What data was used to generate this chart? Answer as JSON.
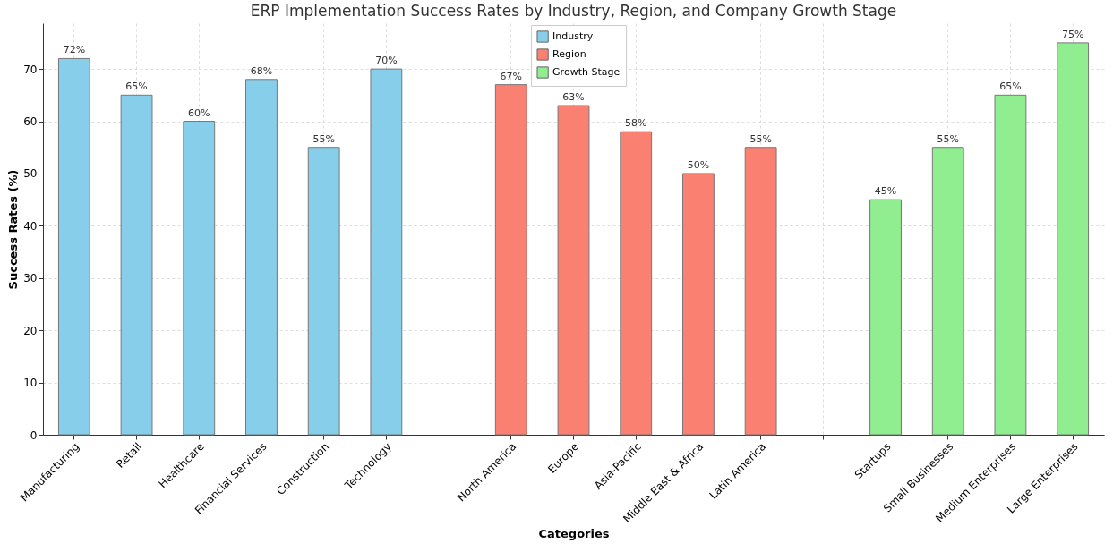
{
  "chart_data": {
    "type": "bar",
    "title": "ERP Implementation Success Rates by Industry, Region, and Company Growth Stage",
    "xlabel": "Categories",
    "ylabel": "Success Rates (%)",
    "categories": [
      "Manufacturing",
      "Retail",
      "Healthcare",
      "Financial Services",
      "Construction",
      "Technology",
      null,
      "North America",
      "Europe",
      "Asia-Pacific",
      "Middle East & Africa",
      "Latin America",
      null,
      "Startups",
      "Small Businesses",
      "Medium Enterprises",
      "Large Enterprises"
    ],
    "series": [
      {
        "name": "Industry",
        "color": "#87ceeb",
        "values": [
          72,
          65,
          60,
          68,
          55,
          70,
          null,
          null,
          null,
          null,
          null,
          null,
          null,
          null,
          null,
          null,
          null
        ],
        "value_labels": [
          "72%",
          "65%",
          "60%",
          "68%",
          "55%",
          "70%",
          null,
          null,
          null,
          null,
          null,
          null,
          null,
          null,
          null,
          null,
          null
        ]
      },
      {
        "name": "Region",
        "color": "#fa8072",
        "values": [
          null,
          null,
          null,
          null,
          null,
          null,
          null,
          67,
          63,
          58,
          50,
          55,
          null,
          null,
          null,
          null,
          null
        ],
        "value_labels": [
          null,
          null,
          null,
          null,
          null,
          null,
          null,
          "67%",
          "63%",
          "58%",
          "50%",
          "55%",
          null,
          null,
          null,
          null,
          null
        ]
      },
      {
        "name": "Growth Stage",
        "color": "#90ee90",
        "values": [
          null,
          null,
          null,
          null,
          null,
          null,
          null,
          null,
          null,
          null,
          null,
          null,
          null,
          45,
          55,
          65,
          75
        ],
        "value_labels": [
          null,
          null,
          null,
          null,
          null,
          null,
          null,
          null,
          null,
          null,
          null,
          null,
          null,
          "45%",
          "55%",
          "65%",
          "75%"
        ]
      }
    ],
    "ylim": [
      0,
      78.75
    ],
    "yticks": [
      0,
      10,
      20,
      30,
      40,
      50,
      60,
      70
    ],
    "grid": true,
    "legend": "top"
  }
}
